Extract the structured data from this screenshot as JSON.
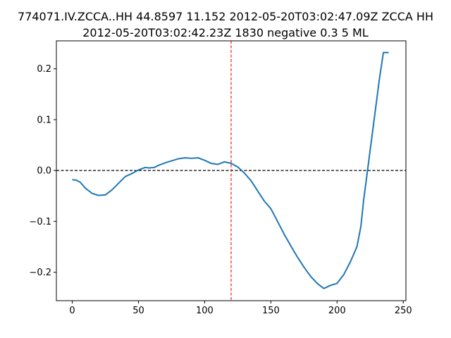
{
  "chart_data": {
    "type": "line",
    "title_lines": [
      "774071.IV.ZCCA..HH 44.8597 11.152 2012-05-20T03:02:47.09Z ZCCA HH",
      "2012-05-20T03:02:42.23Z 1830 negative 0.3 5 ML"
    ],
    "xlabel": "",
    "ylabel": "",
    "xlim": [
      -12,
      252
    ],
    "ylim": [
      -0.256,
      0.255
    ],
    "xticks": [
      0,
      50,
      100,
      150,
      200,
      250
    ],
    "xtick_labels": [
      "0",
      "50",
      "100",
      "150",
      "200",
      "250"
    ],
    "yticks": [
      -0.2,
      -0.1,
      0.0,
      0.1,
      0.2
    ],
    "ytick_labels": [
      "−0.2",
      "−0.1",
      "0.0",
      "0.1",
      "0.2"
    ],
    "grid": false,
    "line_color": "#1f77b4",
    "zero_line": {
      "y": 0.0,
      "color": "#000000",
      "style": "dashed"
    },
    "marker_line": {
      "x": 120,
      "color": "#ff0000",
      "style": "dashed"
    },
    "series": [
      {
        "x": [
          0,
          3,
          6,
          10,
          15,
          20,
          25,
          30,
          35,
          40,
          45,
          50,
          55,
          58,
          62,
          65,
          70,
          75,
          80,
          85,
          90,
          95,
          100,
          105,
          110,
          115,
          120,
          125,
          130,
          135,
          140,
          145,
          150,
          155,
          160,
          165,
          170,
          175,
          180,
          185,
          190,
          195,
          200,
          205,
          210,
          215,
          218,
          220,
          223,
          226,
          229,
          232,
          235,
          237,
          239
        ],
        "y": [
          -0.018,
          -0.019,
          -0.023,
          -0.035,
          -0.045,
          -0.049,
          -0.048,
          -0.038,
          -0.025,
          -0.012,
          -0.006,
          0.001,
          0.006,
          0.005,
          0.006,
          0.01,
          0.015,
          0.019,
          0.023,
          0.025,
          0.024,
          0.025,
          0.02,
          0.014,
          0.012,
          0.017,
          0.014,
          0.007,
          -0.005,
          -0.02,
          -0.04,
          -0.06,
          -0.075,
          -0.1,
          -0.125,
          -0.148,
          -0.17,
          -0.19,
          -0.208,
          -0.222,
          -0.232,
          -0.226,
          -0.222,
          -0.205,
          -0.18,
          -0.15,
          -0.11,
          -0.06,
          0.0,
          0.06,
          0.12,
          0.18,
          0.232,
          0.232,
          0.232
        ]
      }
    ]
  }
}
